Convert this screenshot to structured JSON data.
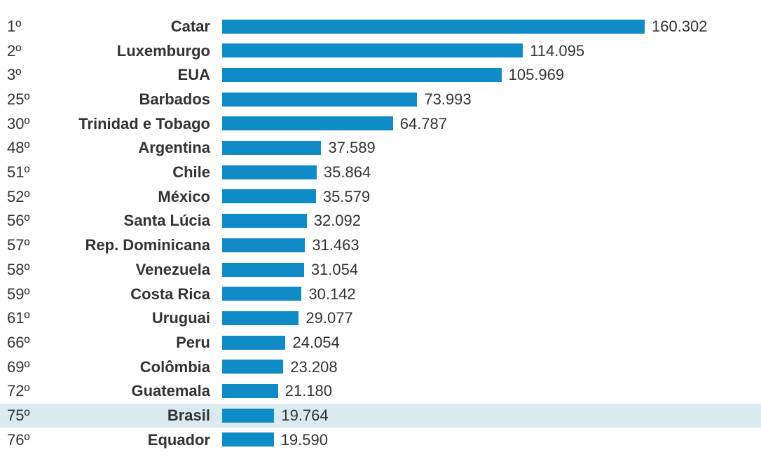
{
  "chart_data": {
    "type": "bar",
    "orientation": "horizontal",
    "ranks": [
      "1º",
      "2º",
      "3º",
      "25º",
      "30º",
      "48º",
      "51º",
      "52º",
      "56º",
      "57º",
      "58º",
      "59º",
      "61º",
      "66º",
      "69º",
      "72º",
      "75º",
      "76º"
    ],
    "categories": [
      "Catar",
      "Luxemburgo",
      "EUA",
      "Barbados",
      "Trinidad e Tobago",
      "Argentina",
      "Chile",
      "México",
      "Santa Lúcia",
      "Rep. Dominicana",
      "Venezuela",
      "Costa Rica",
      "Uruguai",
      "Peru",
      "Colômbia",
      "Guatemala",
      "Brasil",
      "Equador"
    ],
    "values": [
      160302,
      114095,
      105969,
      73993,
      64787,
      37589,
      35864,
      35579,
      32092,
      31463,
      31054,
      30142,
      29077,
      24054,
      23208,
      21180,
      19764,
      19590
    ],
    "value_labels": [
      "160.302",
      "114.095",
      "105.969",
      "73.993",
      "64.787",
      "37.589",
      "35.864",
      "35.579",
      "32.092",
      "31.463",
      "31.054",
      "30.142",
      "29.077",
      "24.054",
      "23.208",
      "21.180",
      "19.764",
      "19.590"
    ],
    "highlighted_category": "Brasil",
    "xlim": [
      0,
      160302
    ],
    "grid": false,
    "colors": {
      "bar": "#0f8cc8",
      "highlight_row": "#dbe9f1",
      "text": "#333333"
    }
  }
}
